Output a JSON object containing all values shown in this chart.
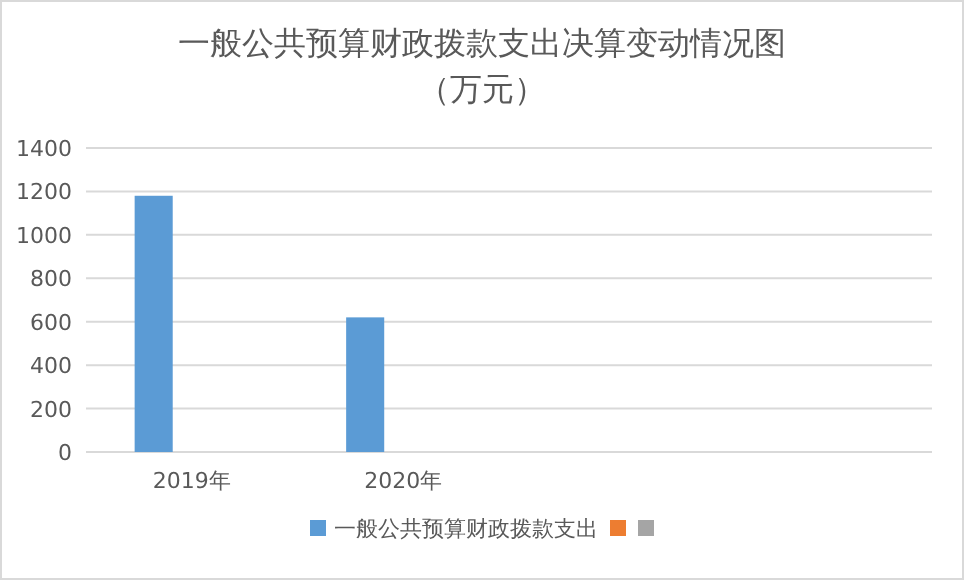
{
  "chart_data": {
    "type": "bar",
    "title": "一般公共预算财政拨款支出决算变动情况图",
    "subtitle": "（万元）",
    "categories": [
      "2019年",
      "2020年",
      null,
      null
    ],
    "series": [
      {
        "name": "一般公共预算财政拨款支出",
        "color": "#5b9bd5",
        "values": [
          1180,
          620,
          null,
          null
        ]
      },
      {
        "color": "#ed7d31",
        "values": [
          null,
          null,
          null,
          null
        ]
      },
      {
        "color": "#a5a5a5",
        "values": [
          null,
          null,
          null,
          null
        ]
      }
    ],
    "ylim": [
      0,
      1400
    ],
    "yticks": [
      0,
      200,
      400,
      600,
      800,
      1000,
      1200,
      1400
    ],
    "grid": "y",
    "legend": "bottom"
  }
}
